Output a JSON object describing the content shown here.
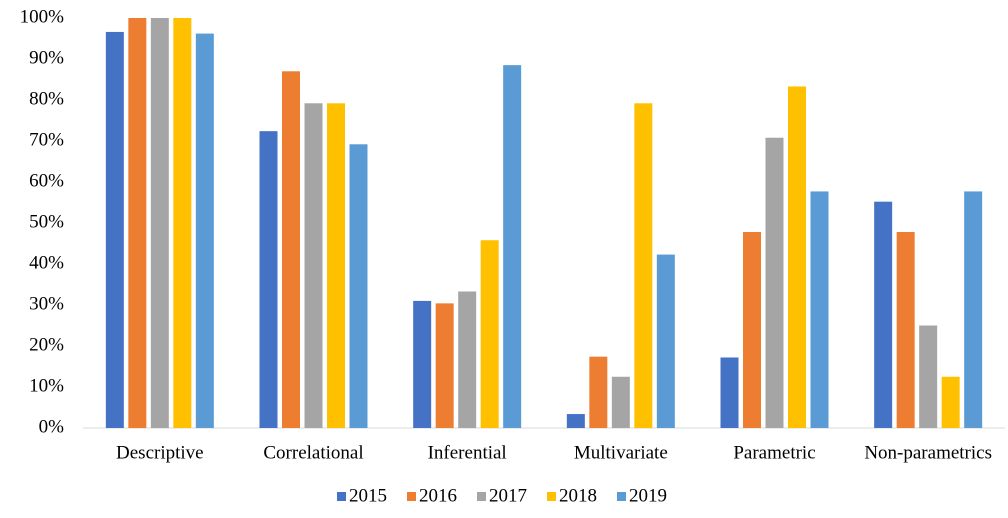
{
  "chart_data": {
    "type": "bar",
    "categories": [
      "Descriptive",
      "Correlational",
      "Inferential",
      "Multivariate",
      "Parametric",
      "Non-parametrics"
    ],
    "series": [
      {
        "name": "2015",
        "color": "#4472c4",
        "values": [
          96.6,
          72.4,
          31,
          3.4,
          17.2,
          55.2
        ]
      },
      {
        "name": "2016",
        "color": "#ed7d31",
        "values": [
          100,
          87,
          30.4,
          17.4,
          47.8,
          47.8
        ]
      },
      {
        "name": "2017",
        "color": "#a5a5a5",
        "values": [
          100,
          79.2,
          33.3,
          12.5,
          70.8,
          25
        ]
      },
      {
        "name": "2018",
        "color": "#ffc000",
        "values": [
          100,
          79.2,
          45.8,
          79.2,
          83.3,
          12.5
        ]
      },
      {
        "name": "2019",
        "color": "#5b9bd5",
        "values": [
          96.2,
          69.2,
          88.5,
          42.3,
          57.7,
          57.7
        ]
      }
    ],
    "ylim": [
      0,
      100
    ],
    "yticks": [
      {
        "value": 0,
        "label": "0%"
      },
      {
        "value": 10,
        "label": "10%"
      },
      {
        "value": 20,
        "label": "20%"
      },
      {
        "value": 30,
        "label": "30%"
      },
      {
        "value": 40,
        "label": "40%"
      },
      {
        "value": 50,
        "label": "50%"
      },
      {
        "value": 60,
        "label": "60%"
      },
      {
        "value": 70,
        "label": "70%"
      },
      {
        "value": 80,
        "label": "80%"
      },
      {
        "value": 90,
        "label": "90%"
      },
      {
        "value": 100,
        "label": "100%"
      }
    ],
    "legend": "bottom"
  }
}
